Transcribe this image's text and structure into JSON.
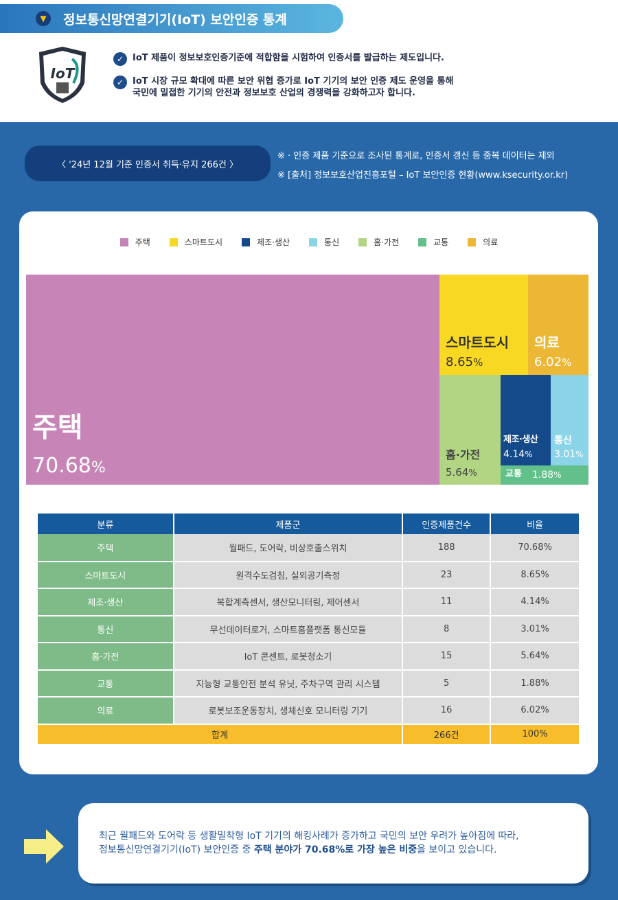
{
  "header": {
    "title": "정보통신망연결기기(IoT) 보안인증 통계",
    "logo_text": "Security Certified IoT",
    "bullets": [
      "IoT 제품이 정보보호인증기준에 적합함을 시험하여 인증서를 발급하는 제도입니다.",
      "IoT 시장 규모 확대에 따른 보안 위협 증가로 IoT 기기의 보안 인증 제도 운영을 통해",
      "국민에 밀접한 기기의 안전과 정보보호 산업의 경쟁력을 강화하고자 합니다."
    ]
  },
  "summary_pill": "〈 '24년 12월 기준 인증서 취득·유지 266건 〉",
  "notes": [
    "※ · 인증 제품 기준으로 조사된 통계로, 인증서 갱신 등 중복 데이터는 제외",
    "※   [출처] 정보보호산업진흥포털 – IoT 보안인증 현황(www.ksecurity.or.kr)"
  ],
  "chart_data": {
    "type": "treemap",
    "legend": [
      {
        "label": "주택",
        "color": "#c784b6"
      },
      {
        "label": "스마트도시",
        "color": "#f8d823"
      },
      {
        "label": "제조·생산",
        "color": "#144a8a"
      },
      {
        "label": "통신",
        "color": "#8bd4e8"
      },
      {
        "label": "홈·가전",
        "color": "#b2d583"
      },
      {
        "label": "교통",
        "color": "#62c18a"
      },
      {
        "label": "의료",
        "color": "#ecb735"
      }
    ],
    "tiles": [
      {
        "name": "주택",
        "pct": "70.68",
        "value": 70.68
      },
      {
        "name": "스마트도시",
        "pct": "8.65",
        "value": 8.65
      },
      {
        "name": "의료",
        "pct": "6.02",
        "value": 6.02
      },
      {
        "name": "홈·가전",
        "pct": "5.64",
        "value": 5.64
      },
      {
        "name": "제조·생산",
        "pct": "4.14",
        "value": 4.14
      },
      {
        "name": "통신",
        "pct": "3.01",
        "value": 3.01
      },
      {
        "name": "교통",
        "pct": "1.88",
        "value": 1.88
      }
    ]
  },
  "table": {
    "headers": [
      "분류",
      "제품군",
      "인증제품건수",
      "비율"
    ],
    "rows": [
      [
        "주택",
        "월패드, 도어락, 비상호출스위치",
        "188",
        "70.68%"
      ],
      [
        "스마트도시",
        "원격수도검침, 실외공기측정",
        "23",
        "8.65%"
      ],
      [
        "제조·생산",
        "복합계측센서, 생산모니터링, 제어센서",
        "11",
        "4.14%"
      ],
      [
        "통신",
        "무선데이터로거, 스마트홈플랫폼 통신모듈",
        "8",
        "3.01%"
      ],
      [
        "홈·가전",
        "IoT 콘센트, 로봇청소기",
        "15",
        "5.64%"
      ],
      [
        "교통",
        "지능형 교통안전 분석 유닛, 주차구역 관리 시스템",
        "5",
        "1.88%"
      ],
      [
        "의료",
        "로봇보조운동장치, 생체신호 모니터링 기기",
        "16",
        "6.02%"
      ]
    ],
    "total": [
      "합계",
      "266건",
      "100%"
    ]
  },
  "summary": {
    "line1": "최근 월패드와 도어락 등 생활밀착형 IoT 기기의 해킹사례가 증가하고 국민의 보안 우려가 높아짐에 따라,",
    "line2_pre": "정보통신망연결기기(IoT) 보안인증 중 ",
    "line2_bold": "주택 분야가 70.68%로 가장 높은 비중",
    "line2_post": "을 보이고 있습니다."
  }
}
